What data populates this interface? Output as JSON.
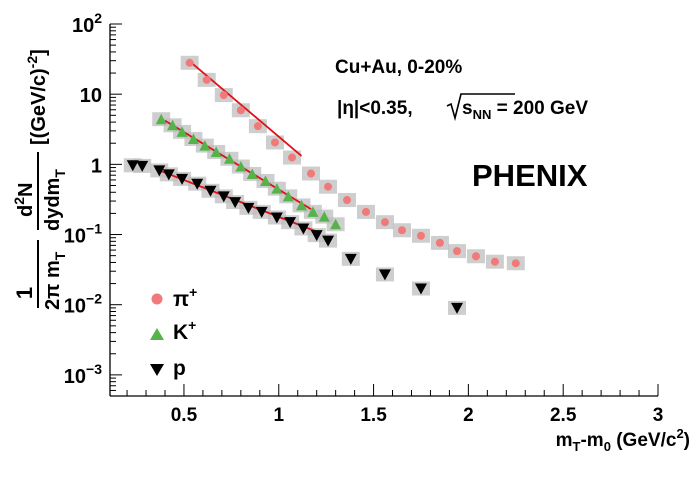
{
  "chart_data": {
    "type": "scatter",
    "log_y": true,
    "xlim": [
      0.11,
      3.0
    ],
    "ylim": [
      0.0005,
      100
    ],
    "x_ticks": [
      {
        "value": 0.5,
        "label": "0.5"
      },
      {
        "value": 1.0,
        "label": "1"
      },
      {
        "value": 1.5,
        "label": "1.5"
      },
      {
        "value": 2.0,
        "label": "2"
      },
      {
        "value": 2.5,
        "label": "2.5"
      },
      {
        "value": 3.0,
        "label": "3"
      }
    ],
    "y_ticks": [
      {
        "value": 0.001,
        "base": "10",
        "exp": "−3"
      },
      {
        "value": 0.01,
        "base": "10",
        "exp": "−2"
      },
      {
        "value": 0.1,
        "base": "10",
        "exp": "−1"
      },
      {
        "value": 1,
        "base": "1",
        "exp": ""
      },
      {
        "value": 10,
        "base": "10",
        "exp": ""
      },
      {
        "value": 100,
        "base": "10",
        "exp": "2"
      }
    ],
    "xlabel": {
      "main": "m",
      "sub1": "T",
      "mid": "-m",
      "sub2": "0",
      "unit": " (GeV/c",
      "sup": "2",
      "close": ")"
    },
    "ylabel": {
      "frac1_num": "1",
      "frac1_den_a": "2π m",
      "frac1_den_sub": "T",
      "frac2_num_a": "d",
      "frac2_num_sup": "2",
      "frac2_num_b": "N",
      "frac2_den_a": "dydm",
      "frac2_den_sub": "T",
      "units_a": "[(GeV/c)",
      "units_sup": "-2",
      "units_b": "]"
    },
    "annotations": {
      "line1": "Cu+Au, 0-20%",
      "line2_a": "|η|<0.35,",
      "line2_b": "s",
      "line2_sub": "NN",
      "line2_c": " = 200 GeV",
      "label": "PHENIX"
    },
    "legend": {
      "placement": "bottom-left",
      "entries": [
        {
          "label": "π",
          "sup": "+",
          "marker": "circle",
          "color": "#f07a7a"
        },
        {
          "label": "K",
          "sup": "+",
          "marker": "triangle-up",
          "color": "#55b34a"
        },
        {
          "label": "p",
          "sup": "",
          "marker": "triangle-down",
          "color": "#000000"
        }
      ]
    },
    "series": [
      {
        "name": "π+",
        "marker": "circle",
        "color": "#f07a7a",
        "box_color": "#bdbdbd",
        "x": [
          0.53,
          0.62,
          0.71,
          0.8,
          0.89,
          0.98,
          1.07,
          1.17,
          1.26,
          1.36,
          1.46,
          1.56,
          1.65,
          1.75,
          1.85,
          1.94,
          2.04,
          2.14,
          2.25
        ],
        "y": [
          28,
          16,
          9.7,
          5.9,
          3.5,
          2.05,
          1.25,
          0.74,
          0.48,
          0.31,
          0.21,
          0.15,
          0.115,
          0.096,
          0.076,
          0.058,
          0.049,
          0.041,
          0.039
        ]
      },
      {
        "name": "K+",
        "marker": "triangle-up",
        "color": "#55b34a",
        "box_color": "#bdbdbd",
        "x": [
          0.38,
          0.44,
          0.49,
          0.55,
          0.61,
          0.67,
          0.74,
          0.8,
          0.86,
          0.93,
          0.99,
          1.05,
          1.12,
          1.18,
          1.24,
          1.3
        ],
        "y": [
          4.4,
          3.6,
          2.9,
          2.3,
          1.85,
          1.5,
          1.2,
          0.93,
          0.73,
          0.58,
          0.45,
          0.35,
          0.26,
          0.21,
          0.18,
          0.14
        ]
      },
      {
        "name": "p",
        "marker": "triangle-down",
        "color": "#000000",
        "box_color": "#bdbdbd",
        "x": [
          0.23,
          0.28,
          0.37,
          0.42,
          0.49,
          0.57,
          0.64,
          0.71,
          0.77,
          0.84,
          0.91,
          0.99,
          1.06,
          1.13,
          1.2,
          1.26,
          1.38,
          1.56,
          1.75,
          1.94
        ],
        "y": [
          0.97,
          0.95,
          0.82,
          0.72,
          0.62,
          0.53,
          0.42,
          0.35,
          0.29,
          0.24,
          0.21,
          0.175,
          0.15,
          0.122,
          0.098,
          0.082,
          0.045,
          0.027,
          0.017,
          0.009
        ]
      }
    ],
    "fits": [
      {
        "series": "π+",
        "x": [
          0.52,
          1.12
        ],
        "y": [
          31,
          1.32
        ],
        "color": "#e0101a"
      },
      {
        "series": "K+",
        "x": [
          0.4,
          1.17
        ],
        "y": [
          4.2,
          0.23
        ],
        "color": "#e0101a"
      },
      {
        "series": "p",
        "x": [
          0.36,
          1.2
        ],
        "y": [
          0.84,
          0.11
        ],
        "color": "#e0101a"
      }
    ]
  }
}
